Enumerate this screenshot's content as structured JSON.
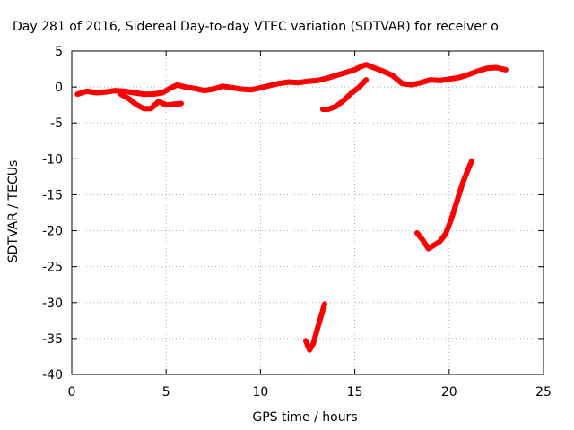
{
  "chart_data": {
    "type": "line",
    "title": "Day 281 of 2016, Sidereal Day-to-day VTEC variation (SDTVAR) for receiver o",
    "xlabel": "GPS time / hours",
    "ylabel": "SDTVAR / TECUs",
    "xlim": [
      0,
      25
    ],
    "ylim": [
      -40,
      5
    ],
    "x_ticks": [
      0,
      5,
      10,
      15,
      20,
      25
    ],
    "y_ticks": [
      5,
      0,
      -5,
      -10,
      -15,
      -20,
      -25,
      -30,
      -35,
      -40
    ],
    "grid": true,
    "legend": "none",
    "series_color": "#ff0000",
    "series": [
      {
        "x": [
          0.3,
          0.8,
          1.3,
          1.8,
          2.3,
          2.8,
          3.3,
          3.8,
          4.3,
          4.8,
          5.2,
          5.6,
          6.0,
          6.5,
          7.0,
          7.5,
          8.0,
          8.5,
          9.0,
          9.5,
          10.0,
          10.5,
          11.0,
          11.5,
          12.0,
          12.5,
          13.0,
          13.5,
          14.0,
          14.5,
          15.0,
          15.3,
          15.6,
          16.0,
          16.5,
          17.0,
          17.5,
          18.0,
          18.5,
          19.0,
          19.5,
          20.0,
          20.5,
          21.0,
          21.5,
          22.0,
          22.5,
          23.0
        ],
        "y": [
          -1.0,
          -0.6,
          -0.8,
          -0.7,
          -0.5,
          -0.6,
          -0.8,
          -1.0,
          -1.0,
          -0.8,
          -0.2,
          0.3,
          0.0,
          -0.2,
          -0.5,
          -0.3,
          0.1,
          -0.1,
          -0.3,
          -0.4,
          -0.1,
          0.2,
          0.5,
          0.7,
          0.6,
          0.8,
          0.9,
          1.2,
          1.6,
          2.0,
          2.4,
          2.8,
          3.1,
          2.7,
          2.2,
          1.6,
          0.5,
          0.3,
          0.6,
          1.0,
          0.9,
          1.1,
          1.3,
          1.7,
          2.2,
          2.6,
          2.7,
          2.4
        ]
      },
      {
        "x": [
          2.6,
          3.0,
          3.4,
          3.8,
          4.2,
          4.6,
          5.0,
          5.4,
          5.8
        ],
        "y": [
          -1.0,
          -1.6,
          -2.4,
          -3.0,
          -3.0,
          -2.0,
          -2.5,
          -2.4,
          -2.3
        ]
      },
      {
        "x": [
          13.3,
          13.6,
          14.0,
          14.4,
          14.8,
          15.2,
          15.6
        ],
        "y": [
          -3.1,
          -3.1,
          -2.7,
          -1.9,
          -0.9,
          -0.1,
          1.0
        ]
      },
      {
        "x": [
          18.3,
          18.6,
          18.9,
          19.2,
          19.5,
          19.8,
          20.1,
          20.4,
          20.7,
          21.0,
          21.2
        ],
        "y": [
          -20.3,
          -21.3,
          -22.5,
          -22.0,
          -21.5,
          -20.5,
          -18.5,
          -16.0,
          -13.5,
          -11.5,
          -10.3
        ]
      },
      {
        "x": [
          12.4,
          12.6,
          12.8,
          13.0,
          13.2,
          13.4
        ],
        "y": [
          -35.3,
          -36.6,
          -35.7,
          -33.8,
          -32.0,
          -30.2
        ]
      }
    ]
  }
}
